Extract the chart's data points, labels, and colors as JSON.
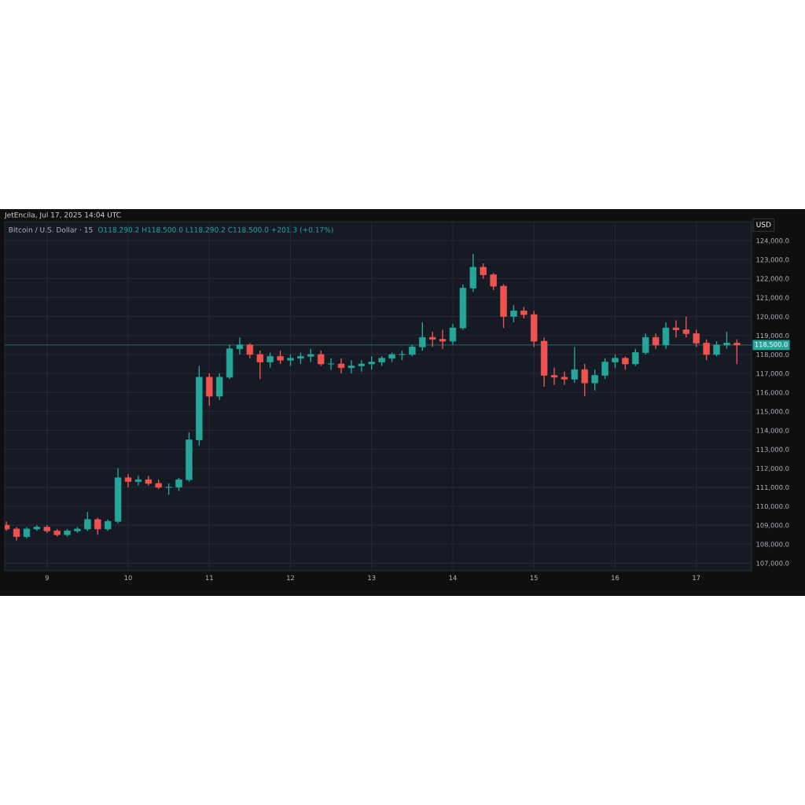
{
  "chart_data": {
    "type": "candlestick",
    "title": "Bitcoin / U.S. Dollar · 15",
    "subtitle": "O118,290.2 H118,500.0 L118,290.2 C118,500.0 +201.3 (+0.17%)",
    "ylabel": "USD",
    "annotations": [
      "JetEncila, Jul 17, 2025 14:04 UTC"
    ],
    "x": [
      "2025-07-08T12:00",
      "2025-07-08T15:00",
      "2025-07-08T18:00",
      "2025-07-08T21:00",
      "2025-07-09T00:00",
      "2025-07-09T03:00",
      "2025-07-09T06:00",
      "2025-07-09T09:00",
      "2025-07-09T12:00",
      "2025-07-09T15:00",
      "2025-07-09T18:00",
      "2025-07-09T21:00",
      "2025-07-10T00:00",
      "2025-07-10T03:00",
      "2025-07-10T06:00",
      "2025-07-10T09:00",
      "2025-07-10T12:00",
      "2025-07-10T15:00",
      "2025-07-10T18:00",
      "2025-07-10T21:00",
      "2025-07-11T00:00",
      "2025-07-11T03:00",
      "2025-07-11T06:00",
      "2025-07-11T09:00",
      "2025-07-11T12:00",
      "2025-07-11T15:00",
      "2025-07-11T18:00",
      "2025-07-11T21:00",
      "2025-07-12T00:00",
      "2025-07-12T03:00",
      "2025-07-12T06:00",
      "2025-07-12T09:00",
      "2025-07-12T12:00",
      "2025-07-12T15:00",
      "2025-07-12T18:00",
      "2025-07-12T21:00",
      "2025-07-13T00:00",
      "2025-07-13T03:00",
      "2025-07-13T06:00",
      "2025-07-13T09:00",
      "2025-07-13T12:00",
      "2025-07-13T15:00",
      "2025-07-13T18:00",
      "2025-07-13T21:00",
      "2025-07-14T00:00",
      "2025-07-14T03:00",
      "2025-07-14T06:00",
      "2025-07-14T09:00",
      "2025-07-14T12:00",
      "2025-07-14T15:00",
      "2025-07-14T18:00",
      "2025-07-14T21:00",
      "2025-07-15T00:00",
      "2025-07-15T03:00",
      "2025-07-15T06:00",
      "2025-07-15T09:00",
      "2025-07-15T12:00",
      "2025-07-15T15:00",
      "2025-07-15T18:00",
      "2025-07-15T21:00",
      "2025-07-16T00:00",
      "2025-07-16T03:00",
      "2025-07-16T06:00",
      "2025-07-16T09:00",
      "2025-07-16T12:00",
      "2025-07-16T15:00",
      "2025-07-16T18:00",
      "2025-07-16T21:00",
      "2025-07-17T00:00",
      "2025-07-17T03:00",
      "2025-07-17T06:00",
      "2025-07-17T09:00",
      "2025-07-17T12:00"
    ],
    "ohlc": [
      [
        109000,
        109200,
        108700,
        108800
      ],
      [
        108800,
        108900,
        108200,
        108400
      ],
      [
        108400,
        108900,
        108300,
        108800
      ],
      [
        108800,
        109000,
        108700,
        108900
      ],
      [
        108900,
        109000,
        108600,
        108700
      ],
      [
        108700,
        108800,
        108400,
        108500
      ],
      [
        108500,
        108800,
        108400,
        108700
      ],
      [
        108700,
        108900,
        108600,
        108800
      ],
      [
        108800,
        109700,
        108700,
        109300
      ],
      [
        109300,
        109400,
        108500,
        108800
      ],
      [
        108800,
        109300,
        108700,
        109200
      ],
      [
        109200,
        112000,
        109100,
        111500
      ],
      [
        111500,
        111700,
        111000,
        111300
      ],
      [
        111300,
        111600,
        111100,
        111400
      ],
      [
        111400,
        111600,
        111100,
        111200
      ],
      [
        111200,
        111400,
        110900,
        111000
      ],
      [
        111000,
        111200,
        110600,
        111000
      ],
      [
        111000,
        111500,
        110800,
        111400
      ],
      [
        111400,
        113900,
        111300,
        113500
      ],
      [
        113500,
        117400,
        113200,
        116800
      ],
      [
        116800,
        117000,
        115300,
        115800
      ],
      [
        115800,
        117000,
        115600,
        116800
      ],
      [
        116800,
        118500,
        116700,
        118300
      ],
      [
        118300,
        118900,
        118000,
        118500
      ],
      [
        118500,
        118600,
        117800,
        118000
      ],
      [
        118000,
        118200,
        116700,
        117600
      ],
      [
        117600,
        118100,
        117300,
        117900
      ],
      [
        117900,
        118200,
        117500,
        117700
      ],
      [
        117700,
        118000,
        117400,
        117800
      ],
      [
        117800,
        118100,
        117500,
        117900
      ],
      [
        117900,
        118300,
        117600,
        118000
      ],
      [
        118000,
        118200,
        117400,
        117500
      ],
      [
        117500,
        117800,
        117200,
        117500
      ],
      [
        117500,
        117800,
        117000,
        117300
      ],
      [
        117300,
        117700,
        117000,
        117400
      ],
      [
        117400,
        117700,
        117100,
        117500
      ],
      [
        117500,
        117900,
        117200,
        117600
      ],
      [
        117600,
        117900,
        117400,
        117800
      ],
      [
        117800,
        118100,
        117600,
        118000
      ],
      [
        118000,
        118200,
        117700,
        118000
      ],
      [
        118000,
        118500,
        117900,
        118400
      ],
      [
        118400,
        119700,
        118200,
        118900
      ],
      [
        118900,
        119200,
        118400,
        118800
      ],
      [
        118800,
        119300,
        118300,
        118700
      ],
      [
        118700,
        119600,
        118500,
        119400
      ],
      [
        119400,
        121700,
        119300,
        121500
      ],
      [
        121500,
        123300,
        121300,
        122600
      ],
      [
        122600,
        122800,
        122000,
        122200
      ],
      [
        122200,
        122300,
        121400,
        121600
      ],
      [
        121600,
        121700,
        119400,
        120000
      ],
      [
        120000,
        120600,
        119700,
        120300
      ],
      [
        120300,
        120500,
        119900,
        120100
      ],
      [
        120100,
        120300,
        118400,
        118700
      ],
      [
        118700,
        118900,
        116300,
        116900
      ],
      [
        116900,
        117300,
        116400,
        116800
      ],
      [
        116800,
        117100,
        116400,
        116700
      ],
      [
        116700,
        118400,
        116500,
        117200
      ],
      [
        117200,
        117500,
        115800,
        116500
      ],
      [
        116500,
        117200,
        116100,
        116900
      ],
      [
        116900,
        117800,
        116700,
        117600
      ],
      [
        117600,
        118000,
        117300,
        117800
      ],
      [
        117800,
        117900,
        117200,
        117500
      ],
      [
        117500,
        118300,
        117400,
        118100
      ],
      [
        118100,
        119100,
        118000,
        118900
      ],
      [
        118900,
        119100,
        118300,
        118500
      ],
      [
        118500,
        119700,
        118300,
        119400
      ],
      [
        119400,
        119800,
        118900,
        119300
      ],
      [
        119300,
        120000,
        118900,
        119100
      ],
      [
        119100,
        119300,
        118400,
        118600
      ],
      [
        118600,
        118800,
        117700,
        118000
      ],
      [
        118000,
        118700,
        117900,
        118500
      ],
      [
        118500,
        119200,
        118300,
        118600
      ],
      [
        118600,
        118800,
        117500,
        118500
      ]
    ],
    "colors": [
      "#ef5350",
      "#ef5350",
      "#26a69a",
      "#26a69a",
      "#ef5350",
      "#ef5350",
      "#26a69a",
      "#26a69a",
      "#26a69a",
      "#ef5350",
      "#26a69a",
      "#26a69a",
      "#ef5350",
      "#26a69a",
      "#ef5350",
      "#ef5350",
      "#26a69a",
      "#26a69a",
      "#26a69a",
      "#26a69a",
      "#ef5350",
      "#26a69a",
      "#26a69a",
      "#26a69a",
      "#ef5350",
      "#ef5350",
      "#26a69a",
      "#ef5350",
      "#26a69a",
      "#26a69a",
      "#26a69a",
      "#ef5350",
      "#26a69a",
      "#ef5350",
      "#26a69a",
      "#26a69a",
      "#26a69a",
      "#26a69a",
      "#26a69a",
      "#26a69a",
      "#26a69a",
      "#26a69a",
      "#ef5350",
      "#ef5350",
      "#26a69a",
      "#26a69a",
      "#26a69a",
      "#ef5350",
      "#ef5350",
      "#ef5350",
      "#26a69a",
      "#ef5350",
      "#ef5350",
      "#ef5350",
      "#ef5350",
      "#ef5350",
      "#26a69a",
      "#ef5350",
      "#26a69a",
      "#26a69a",
      "#26a69a",
      "#ef5350",
      "#26a69a",
      "#26a69a",
      "#ef5350",
      "#26a69a",
      "#ef5350",
      "#ef5350",
      "#ef5350",
      "#ef5350",
      "#26a69a",
      "#26a69a",
      "#ef5350"
    ],
    "xlim": [
      "2025-07-08T11:30",
      "2025-07-17T16:20"
    ],
    "xticks": [
      {
        "value": "2025-07-09",
        "label": "9"
      },
      {
        "value": "2025-07-10",
        "label": "10"
      },
      {
        "value": "2025-07-11",
        "label": "11"
      },
      {
        "value": "2025-07-12",
        "label": "12"
      },
      {
        "value": "2025-07-13",
        "label": "13"
      },
      {
        "value": "2025-07-14",
        "label": "14"
      },
      {
        "value": "2025-07-15",
        "label": "15"
      },
      {
        "value": "2025-07-16",
        "label": "16"
      },
      {
        "value": "2025-07-17",
        "label": "17"
      }
    ],
    "ylim": [
      106600,
      125000
    ],
    "yticks": [
      {
        "value": 107000,
        "label": "107,000.0"
      },
      {
        "value": 108000,
        "label": "108,000.0"
      },
      {
        "value": 109000,
        "label": "109,000.0"
      },
      {
        "value": 110000,
        "label": "110,000.0"
      },
      {
        "value": 111000,
        "label": "111,000.0"
      },
      {
        "value": 112000,
        "label": "112,000.0"
      },
      {
        "value": 113000,
        "label": "113,000.0"
      },
      {
        "value": 114000,
        "label": "114,000.0"
      },
      {
        "value": 115000,
        "label": "115,000.0"
      },
      {
        "value": 116000,
        "label": "116,000.0"
      },
      {
        "value": 117000,
        "label": "117,000.0"
      },
      {
        "value": 118000,
        "label": "118,000.0"
      },
      {
        "value": 119000,
        "label": "119,000.0"
      },
      {
        "value": 120000,
        "label": "120,000.0"
      },
      {
        "value": 121000,
        "label": "121,000.0"
      },
      {
        "value": 122000,
        "label": "122,000.0"
      },
      {
        "value": 123000,
        "label": "123,000.0"
      },
      {
        "value": 124000,
        "label": "124,000.0"
      }
    ],
    "ref_lines": [
      {
        "axis": "y",
        "value": 118500,
        "label": "118,500.0",
        "color": "#26a69a",
        "line_style": "solid"
      }
    ],
    "grid": true
  }
}
